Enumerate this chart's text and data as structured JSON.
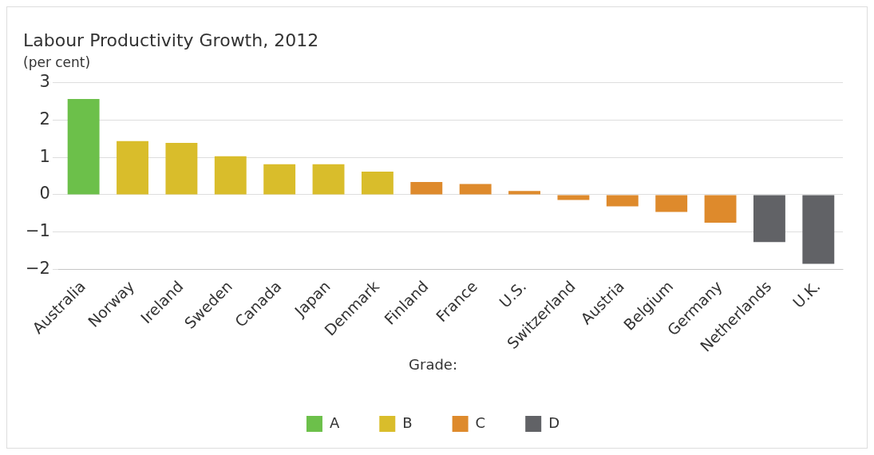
{
  "chart_data": {
    "type": "bar",
    "title": "Labour Productivity Growth, 2012",
    "subtitle": "(per cent)",
    "categories": [
      "Australia",
      "Norway",
      "Ireland",
      "Sweden",
      "Canada",
      "Japan",
      "Denmark",
      "Finland",
      "France",
      "U.S.",
      "Switzerland",
      "Austria",
      "Belgium",
      "Germany",
      "Netherlands",
      "U.K."
    ],
    "series": [
      {
        "name": "A",
        "color": "#6cc04a",
        "values": [
          2.57,
          null,
          null,
          null,
          null,
          null,
          null,
          null,
          null,
          null,
          null,
          null,
          null,
          null,
          null,
          null
        ]
      },
      {
        "name": "B",
        "color": "#d9bd2b",
        "values": [
          null,
          1.44,
          1.39,
          1.03,
          0.82,
          0.82,
          0.62,
          null,
          null,
          null,
          null,
          null,
          null,
          null,
          null,
          null
        ]
      },
      {
        "name": "C",
        "color": "#de8a2c",
        "values": [
          null,
          null,
          null,
          null,
          null,
          null,
          null,
          0.34,
          0.29,
          0.1,
          -0.14,
          -0.31,
          -0.46,
          -0.75,
          null,
          null
        ]
      },
      {
        "name": "D",
        "color": "#616266",
        "values": [
          null,
          null,
          null,
          null,
          null,
          null,
          null,
          null,
          null,
          null,
          null,
          null,
          null,
          null,
          -1.27,
          -1.85
        ]
      }
    ],
    "ylim": [
      -2,
      3
    ],
    "yticks": [
      -2,
      -1,
      0,
      1,
      2,
      3
    ],
    "grid": "y",
    "legend": "bottom",
    "legend_title": "Grade:"
  }
}
